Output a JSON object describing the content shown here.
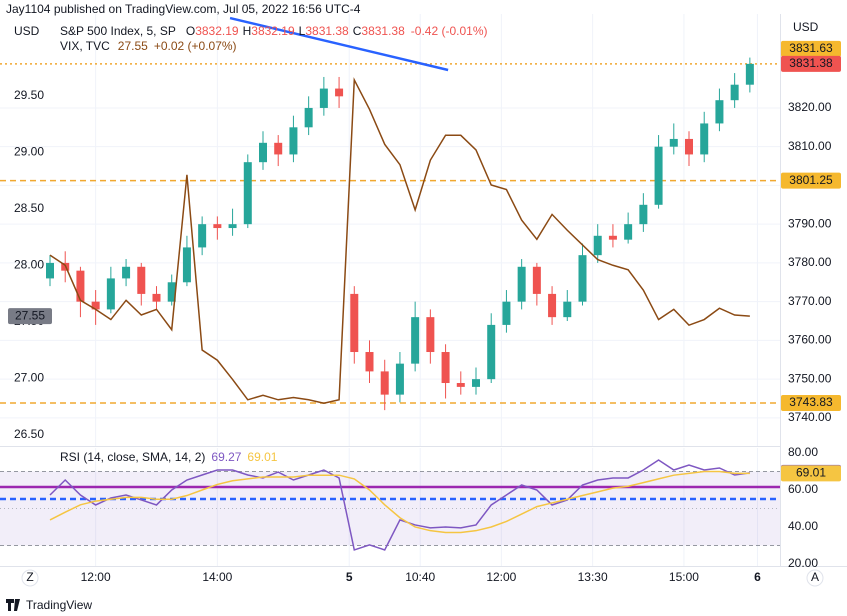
{
  "header": "Jay1104 published on TradingView.com, Jul 05, 2022 16:56 UTC-4",
  "footer": "TradingView",
  "chart_data": [
    {
      "type": "candlestick",
      "currency": "USD",
      "legend": {
        "name": "S&P 500 Index, 5, SP",
        "ohlc_labels": [
          "O",
          "H",
          "L",
          "C"
        ],
        "ohlc": [
          3832.19,
          3832.19,
          3831.38,
          3831.38
        ],
        "change": "-0.42 (-0.01%)"
      },
      "xlim": [
        0,
        140
      ],
      "xticks": [
        {
          "value": 9,
          "label": "12:00"
        },
        {
          "value": 33,
          "label": "14:00"
        },
        {
          "value": 59,
          "label": "5"
        },
        {
          "value": 73,
          "label": "10:40"
        },
        {
          "value": 89,
          "label": "12:00"
        },
        {
          "value": 107,
          "label": "13:30"
        },
        {
          "value": 125,
          "label": "15:00"
        },
        {
          "value": 139.5,
          "label": "6"
        }
      ],
      "ylim": [
        26.41,
        30.17
      ],
      "yticks": [
        {
          "value": 26.5,
          "label": "26.50"
        },
        {
          "value": 27,
          "label": "27.00"
        },
        {
          "value": 27.5,
          "label": "27.50"
        },
        {
          "value": 28,
          "label": "28.00"
        },
        {
          "value": 28.5,
          "label": "28.50"
        },
        {
          "value": 29,
          "label": "29.00"
        },
        {
          "value": 29.5,
          "label": "29.50"
        }
      ],
      "y2lim": [
        3733,
        3842.7
      ],
      "y2ticks": [
        {
          "value": 3740,
          "label": "3740.00"
        },
        {
          "value": 3750,
          "label": "3750.00"
        },
        {
          "value": 3760,
          "label": "3760.00"
        },
        {
          "value": 3770,
          "label": "3770.00"
        },
        {
          "value": 3780,
          "label": "3780.00"
        },
        {
          "value": 3790,
          "label": "3790.00"
        },
        {
          "value": 3800,
          "label": "3800.00"
        },
        {
          "value": 3810,
          "label": "3810.00"
        },
        {
          "value": 3820,
          "label": "3820.00"
        }
      ],
      "x": [
        0,
        3,
        6,
        9,
        12,
        15,
        18,
        21,
        24,
        27,
        30,
        33,
        36,
        39,
        42,
        45,
        48,
        51,
        54,
        57,
        60,
        63,
        66,
        69,
        72,
        75,
        78,
        81,
        84,
        87,
        90,
        93,
        96,
        99,
        102,
        105,
        108,
        111,
        114,
        117,
        120,
        123,
        126,
        129,
        132,
        135,
        138
      ],
      "candles": {
        "axis": "y2",
        "up_color": "#26a69a",
        "down_color": "#ef5350",
        "values": [
          [
            3776,
            3782,
            3774,
            3780
          ],
          [
            3780,
            3783,
            3775,
            3778
          ],
          [
            3778,
            3779,
            3766,
            3770
          ],
          [
            3770,
            3773,
            3764,
            3768
          ],
          [
            3768,
            3779,
            3767,
            3776
          ],
          [
            3776,
            3781,
            3774,
            3779
          ],
          [
            3779,
            3780,
            3769,
            3772
          ],
          [
            3772,
            3774,
            3768,
            3770
          ],
          [
            3770,
            3777,
            3769,
            3775
          ],
          [
            3775,
            3787,
            3774,
            3784
          ],
          [
            3784,
            3792,
            3782,
            3790
          ],
          [
            3790,
            3792,
            3786,
            3789
          ],
          [
            3789,
            3794,
            3787,
            3790
          ],
          [
            3790,
            3808,
            3789,
            3806
          ],
          [
            3806,
            3814,
            3804,
            3811
          ],
          [
            3811,
            3813,
            3805,
            3808
          ],
          [
            3808,
            3818,
            3806,
            3815
          ],
          [
            3815,
            3823,
            3813,
            3820
          ],
          [
            3820,
            3828,
            3818,
            3825
          ],
          [
            3825,
            3828,
            3820,
            3823
          ],
          [
            3772,
            3774,
            3754,
            3757
          ],
          [
            3757,
            3760,
            3749,
            3752
          ],
          [
            3752,
            3755,
            3742,
            3746
          ],
          [
            3746,
            3757,
            3744,
            3754
          ],
          [
            3754,
            3770,
            3752,
            3766
          ],
          [
            3766,
            3768,
            3754,
            3757
          ],
          [
            3757,
            3759,
            3745,
            3749
          ],
          [
            3749,
            3752,
            3746,
            3748
          ],
          [
            3748,
            3753,
            3746,
            3750
          ],
          [
            3750,
            3767,
            3749,
            3764
          ],
          [
            3764,
            3773,
            3762,
            3770
          ],
          [
            3770,
            3781,
            3768,
            3779
          ],
          [
            3779,
            3780,
            3769,
            3772
          ],
          [
            3772,
            3774,
            3764,
            3766
          ],
          [
            3766,
            3773,
            3765,
            3770
          ],
          [
            3770,
            3785,
            3769,
            3782
          ],
          [
            3782,
            3790,
            3780,
            3787
          ],
          [
            3787,
            3790,
            3784,
            3786
          ],
          [
            3786,
            3793,
            3785,
            3790
          ],
          [
            3790,
            3798,
            3788,
            3795
          ],
          [
            3795,
            3813,
            3794,
            3810
          ],
          [
            3810,
            3816,
            3808,
            3812
          ],
          [
            3812,
            3814,
            3805,
            3808
          ],
          [
            3808,
            3819,
            3806,
            3816
          ],
          [
            3816,
            3825,
            3814,
            3822
          ],
          [
            3822,
            3829,
            3820,
            3826
          ],
          [
            3826,
            3833,
            3824,
            3831.38
          ]
        ]
      },
      "series": [
        {
          "name": "VIX, TVC",
          "color": "#8b4a14",
          "change": "+0.02 (+0.07%)",
          "values": [
            28.09,
            28.0,
            27.69,
            27.61,
            27.52,
            27.69,
            27.56,
            27.61,
            27.43,
            28.8,
            27.25,
            27.16,
            26.99,
            26.81,
            26.85,
            26.81,
            26.83,
            26.81,
            26.78,
            26.81,
            29.64,
            29.38,
            29.07,
            28.89,
            28.49,
            28.93,
            29.15,
            29.15,
            29.02,
            28.71,
            28.67,
            28.4,
            28.23,
            28.45,
            28.31,
            28.18,
            28.05,
            28.0,
            27.96,
            27.78,
            27.52,
            27.61,
            27.47,
            27.52,
            27.62,
            27.56,
            27.55
          ]
        }
      ],
      "hlines": [
        {
          "value": 3831.38,
          "color": "#f0a830",
          "style": "dotted",
          "label_color": "#ef5350"
        },
        {
          "value": 3801.25,
          "color": "#f0a830",
          "style": "dashed",
          "label_color": "#f5b82e"
        },
        {
          "value": 3743.83,
          "color": "#f0a830",
          "style": "dashed",
          "label_color": "#f5b82e"
        }
      ],
      "scale_labels": [
        {
          "value": 3831.63,
          "color": "#f5b82e"
        }
      ],
      "trendline": {
        "color": "#2962ff",
        "x": [
          35.5,
          78.5
        ],
        "y": [
          3843.2,
          3829.8
        ]
      }
    },
    {
      "type": "line",
      "title": "RSI (14, close, SMA, 14, 2)",
      "ylim": [
        18.9,
        82.7
      ],
      "yticks": [
        {
          "value": 20,
          "label": "20.00"
        },
        {
          "value": 40,
          "label": "40.00"
        },
        {
          "value": 60,
          "label": "60.00"
        },
        {
          "value": 80,
          "label": "80.00"
        }
      ],
      "band": [
        30,
        70
      ],
      "midline": 50,
      "series": [
        {
          "color": "#7e57c2",
          "values": [
            57.3,
            65.4,
            57.3,
            51.9,
            55.7,
            57.3,
            54.6,
            51.9,
            60,
            65.4,
            68.1,
            70.8,
            70.8,
            68.1,
            66.5,
            69.7,
            65.4,
            68.1,
            70.8,
            66.5,
            27.6,
            30.3,
            27.6,
            43.8,
            41.1,
            39.5,
            40,
            39.5,
            41.1,
            51.9,
            57.3,
            62.7,
            60,
            51.9,
            54.6,
            62.7,
            65.4,
            66.5,
            66.5,
            70.8,
            76.2,
            70.8,
            73.5,
            70.8,
            71.9,
            68.1,
            69.27
          ]
        },
        {
          "color": "#f5c542",
          "values": [
            43.8,
            48,
            52,
            54,
            55,
            56,
            56,
            55,
            55,
            57,
            60,
            63,
            65,
            66,
            67,
            67,
            67,
            68,
            68,
            68,
            66,
            60,
            52,
            45,
            40,
            38,
            37,
            37,
            38,
            40,
            43,
            47,
            51,
            53,
            55,
            57,
            59,
            61,
            62,
            64,
            66,
            68,
            69,
            70,
            70,
            69,
            69.01
          ]
        }
      ],
      "hlines": [
        {
          "value": 61.6,
          "color": "#9c27b0",
          "style": "solid"
        },
        {
          "value": 55.1,
          "color": "#2962ff",
          "style": "dashed"
        }
      ]
    }
  ]
}
